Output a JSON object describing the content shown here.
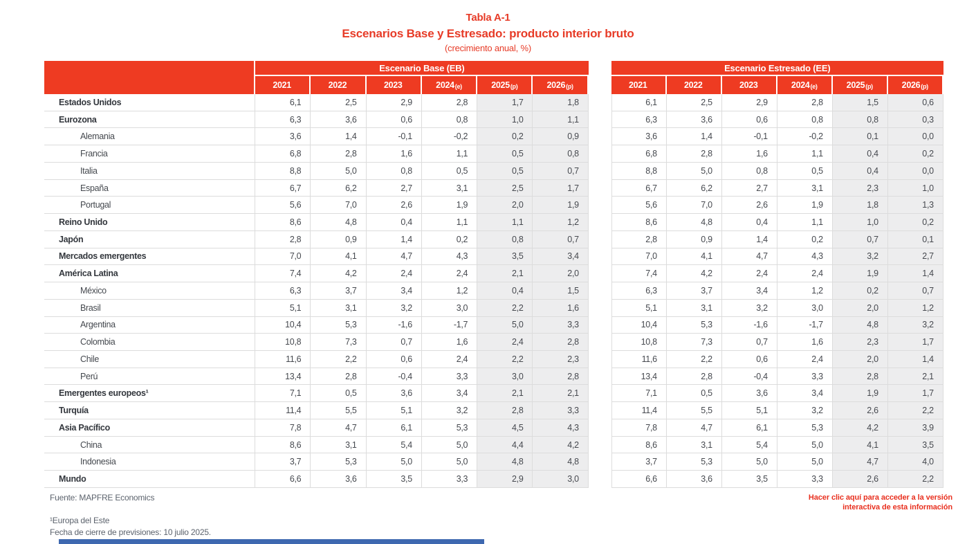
{
  "title": {
    "line1": "Tabla A-1",
    "line2": "Escenarios Base y Estresado: producto interior bruto",
    "line3": "(crecimiento anual, %)"
  },
  "colors": {
    "accent_red": "#ee3b22",
    "shaded_column": "#ededee",
    "grid_border": "#dcdcdc",
    "footer_gray": "#5c636d",
    "link_red": "#e8301f",
    "bottom_bar_blue": "#3e68b0"
  },
  "panels": [
    {
      "name": "Escenario Base (EB)"
    },
    {
      "name": "Escenario Estresado (EE)"
    }
  ],
  "year_columns": [
    {
      "y": "2021",
      "s": ""
    },
    {
      "y": "2022",
      "s": ""
    },
    {
      "y": "2023",
      "s": ""
    },
    {
      "y": "2024",
      "s": "(e)"
    },
    {
      "y": "2025",
      "s": "(p)"
    },
    {
      "y": "2026",
      "s": "(p)"
    }
  ],
  "shaded_from_index": 4,
  "rows": [
    {
      "label": "Estados Unidos",
      "bold": true,
      "indent": false,
      "eb": [
        "6,1",
        "2,5",
        "2,9",
        "2,8",
        "1,7",
        "1,8"
      ],
      "ee": [
        "6,1",
        "2,5",
        "2,9",
        "2,8",
        "1,5",
        "0,6"
      ]
    },
    {
      "label": "Eurozona",
      "bold": true,
      "indent": false,
      "eb": [
        "6,3",
        "3,6",
        "0,6",
        "0,8",
        "1,0",
        "1,1"
      ],
      "ee": [
        "6,3",
        "3,6",
        "0,6",
        "0,8",
        "0,8",
        "0,3"
      ]
    },
    {
      "label": "Alemania",
      "bold": false,
      "indent": true,
      "eb": [
        "3,6",
        "1,4",
        "-0,1",
        "-0,2",
        "0,2",
        "0,9"
      ],
      "ee": [
        "3,6",
        "1,4",
        "-0,1",
        "-0,2",
        "0,1",
        "0,0"
      ]
    },
    {
      "label": "Francia",
      "bold": false,
      "indent": true,
      "eb": [
        "6,8",
        "2,8",
        "1,6",
        "1,1",
        "0,5",
        "0,8"
      ],
      "ee": [
        "6,8",
        "2,8",
        "1,6",
        "1,1",
        "0,4",
        "0,2"
      ]
    },
    {
      "label": "Italia",
      "bold": false,
      "indent": true,
      "eb": [
        "8,8",
        "5,0",
        "0,8",
        "0,5",
        "0,5",
        "0,7"
      ],
      "ee": [
        "8,8",
        "5,0",
        "0,8",
        "0,5",
        "0,4",
        "0,0"
      ]
    },
    {
      "label": "España",
      "bold": false,
      "indent": true,
      "eb": [
        "6,7",
        "6,2",
        "2,7",
        "3,1",
        "2,5",
        "1,7"
      ],
      "ee": [
        "6,7",
        "6,2",
        "2,7",
        "3,1",
        "2,3",
        "1,0"
      ]
    },
    {
      "label": "Portugal",
      "bold": false,
      "indent": true,
      "eb": [
        "5,6",
        "7,0",
        "2,6",
        "1,9",
        "2,0",
        "1,9"
      ],
      "ee": [
        "5,6",
        "7,0",
        "2,6",
        "1,9",
        "1,8",
        "1,3"
      ]
    },
    {
      "label": "Reino Unido",
      "bold": true,
      "indent": false,
      "eb": [
        "8,6",
        "4,8",
        "0,4",
        "1,1",
        "1,1",
        "1,2"
      ],
      "ee": [
        "8,6",
        "4,8",
        "0,4",
        "1,1",
        "1,0",
        "0,2"
      ]
    },
    {
      "label": "Japón",
      "bold": true,
      "indent": false,
      "eb": [
        "2,8",
        "0,9",
        "1,4",
        "0,2",
        "0,8",
        "0,7"
      ],
      "ee": [
        "2,8",
        "0,9",
        "1,4",
        "0,2",
        "0,7",
        "0,1"
      ]
    },
    {
      "label": "Mercados emergentes",
      "bold": true,
      "indent": false,
      "eb": [
        "7,0",
        "4,1",
        "4,7",
        "4,3",
        "3,5",
        "3,4"
      ],
      "ee": [
        "7,0",
        "4,1",
        "4,7",
        "4,3",
        "3,2",
        "2,7"
      ]
    },
    {
      "label": "América Latina",
      "bold": true,
      "indent": false,
      "eb": [
        "7,4",
        "4,2",
        "2,4",
        "2,4",
        "2,1",
        "2,0"
      ],
      "ee": [
        "7,4",
        "4,2",
        "2,4",
        "2,4",
        "1,9",
        "1,4"
      ]
    },
    {
      "label": "México",
      "bold": false,
      "indent": true,
      "eb": [
        "6,3",
        "3,7",
        "3,4",
        "1,2",
        "0,4",
        "1,5"
      ],
      "ee": [
        "6,3",
        "3,7",
        "3,4",
        "1,2",
        "0,2",
        "0,7"
      ]
    },
    {
      "label": "Brasil",
      "bold": false,
      "indent": true,
      "eb": [
        "5,1",
        "3,1",
        "3,2",
        "3,0",
        "2,2",
        "1,6"
      ],
      "ee": [
        "5,1",
        "3,1",
        "3,2",
        "3,0",
        "2,0",
        "1,2"
      ]
    },
    {
      "label": "Argentina",
      "bold": false,
      "indent": true,
      "eb": [
        "10,4",
        "5,3",
        "-1,6",
        "-1,7",
        "5,0",
        "3,3"
      ],
      "ee": [
        "10,4",
        "5,3",
        "-1,6",
        "-1,7",
        "4,8",
        "3,2"
      ]
    },
    {
      "label": "Colombia",
      "bold": false,
      "indent": true,
      "eb": [
        "10,8",
        "7,3",
        "0,7",
        "1,6",
        "2,4",
        "2,8"
      ],
      "ee": [
        "10,8",
        "7,3",
        "0,7",
        "1,6",
        "2,3",
        "1,7"
      ]
    },
    {
      "label": "Chile",
      "bold": false,
      "indent": true,
      "eb": [
        "11,6",
        "2,2",
        "0,6",
        "2,4",
        "2,2",
        "2,3"
      ],
      "ee": [
        "11,6",
        "2,2",
        "0,6",
        "2,4",
        "2,0",
        "1,4"
      ]
    },
    {
      "label": "Perú",
      "bold": false,
      "indent": true,
      "eb": [
        "13,4",
        "2,8",
        "-0,4",
        "3,3",
        "3,0",
        "2,8"
      ],
      "ee": [
        "13,4",
        "2,8",
        "-0,4",
        "3,3",
        "2,8",
        "2,1"
      ]
    },
    {
      "label": "Emergentes europeos¹",
      "bold": true,
      "indent": false,
      "eb": [
        "7,1",
        "0,5",
        "3,6",
        "3,4",
        "2,1",
        "2,1"
      ],
      "ee": [
        "7,1",
        "0,5",
        "3,6",
        "3,4",
        "1,9",
        "1,7"
      ]
    },
    {
      "label": "Turquía",
      "bold": true,
      "indent": false,
      "eb": [
        "11,4",
        "5,5",
        "5,1",
        "3,2",
        "2,8",
        "3,3"
      ],
      "ee": [
        "11,4",
        "5,5",
        "5,1",
        "3,2",
        "2,6",
        "2,2"
      ]
    },
    {
      "label": "Asia Pacífico",
      "bold": true,
      "indent": false,
      "eb": [
        "7,8",
        "4,7",
        "6,1",
        "5,3",
        "4,5",
        "4,3"
      ],
      "ee": [
        "7,8",
        "4,7",
        "6,1",
        "5,3",
        "4,2",
        "3,9"
      ]
    },
    {
      "label": "China",
      "bold": false,
      "indent": true,
      "eb": [
        "8,6",
        "3,1",
        "5,4",
        "5,0",
        "4,4",
        "4,2"
      ],
      "ee": [
        "8,6",
        "3,1",
        "5,4",
        "5,0",
        "4,1",
        "3,5"
      ]
    },
    {
      "label": "Indonesia",
      "bold": false,
      "indent": true,
      "eb": [
        "3,7",
        "5,3",
        "5,0",
        "5,0",
        "4,8",
        "4,8"
      ],
      "ee": [
        "3,7",
        "5,3",
        "5,0",
        "5,0",
        "4,7",
        "4,0"
      ]
    },
    {
      "label": "Mundo",
      "bold": true,
      "indent": false,
      "eb": [
        "6,6",
        "3,6",
        "3,5",
        "3,3",
        "2,9",
        "3,0"
      ],
      "ee": [
        "6,6",
        "3,6",
        "3,5",
        "3,3",
        "2,6",
        "2,2"
      ]
    }
  ],
  "footer": {
    "source": "Fuente: MAPFRE Economics",
    "note1": "¹Europa del Este",
    "note2": "Fecha de cierre de previsiones: 10 julio 2025.",
    "link": "Hacer clic aquí para acceder a la versión interactiva de esta información"
  }
}
